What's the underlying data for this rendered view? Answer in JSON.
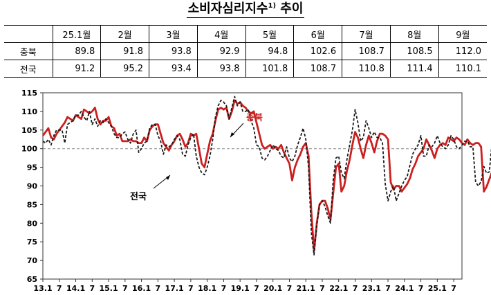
{
  "title": "소비자심리지수",
  "title_footnote": "1)",
  "title_suffix": "추이",
  "table": {
    "columns": [
      "25.1월",
      "2월",
      "3월",
      "4월",
      "5월",
      "6월",
      "7월",
      "8월",
      "9월"
    ],
    "rows": [
      {
        "label": "충북",
        "values": [
          "89.8",
          "91.8",
          "93.8",
          "92.9",
          "94.8",
          "102.6",
          "108.7",
          "108.5",
          "112.0"
        ]
      },
      {
        "label": "전국",
        "values": [
          "91.2",
          "95.2",
          "93.4",
          "93.8",
          "101.8",
          "108.7",
          "110.8",
          "111.4",
          "110.1"
        ]
      }
    ]
  },
  "chart_data": {
    "type": "line",
    "x_ticks": [
      "13.1",
      "7",
      "14.1",
      "7",
      "15.1",
      "7",
      "16.1",
      "7",
      "17.1",
      "7",
      "18.1",
      "7",
      "19.1",
      "7",
      "20.1",
      "7",
      "21.1",
      "7",
      "22.1",
      "7",
      "23.1",
      "7",
      "24.1",
      "7",
      "25.1",
      "7"
    ],
    "x_start": "2013.1",
    "x_end": "2025.9",
    "ylim": [
      65,
      115
    ],
    "y_ticks": [
      "65",
      "70",
      "75",
      "80",
      "85",
      "90",
      "95",
      "100",
      "105",
      "110",
      "115"
    ],
    "reference_line": 100,
    "grid": false,
    "series": [
      {
        "name": "충북",
        "color": "#cc1f1f",
        "style": "solid",
        "values": [
          103.5,
          104.5,
          105.5,
          103.0,
          102.5,
          104.0,
          105.0,
          106.0,
          107.0,
          108.5,
          108.0,
          107.5,
          109.0,
          108.5,
          108.0,
          110.5,
          110.0,
          109.5,
          110.0,
          111.0,
          108.0,
          106.5,
          107.5,
          107.5,
          108.5,
          106.0,
          105.5,
          103.5,
          104.0,
          102.0,
          102.0,
          102.0,
          102.5,
          102.0,
          102.0,
          101.5,
          101.5,
          103.0,
          102.0,
          105.0,
          106.0,
          106.5,
          106.5,
          104.0,
          101.5,
          100.5,
          99.5,
          101.0,
          102.0,
          103.5,
          104.0,
          102.5,
          100.5,
          101.5,
          104.0,
          103.5,
          104.0,
          100.0,
          96.0,
          95.0,
          98.5,
          102.0,
          104.0,
          107.5,
          110.5,
          111.0,
          110.5,
          111.0,
          108.0,
          110.0,
          113.0,
          112.0,
          112.5,
          111.5,
          111.0,
          110.0,
          109.5,
          110.0,
          107.0,
          104.0,
          101.0,
          100.0,
          100.5,
          101.0,
          100.0,
          100.5,
          100.0,
          101.0,
          99.0,
          97.5,
          96.0,
          91.5,
          95.0,
          97.0,
          98.5,
          100.5,
          101.5,
          98.0,
          83.0,
          72.5,
          80.0,
          85.0,
          86.0,
          86.0,
          84.0,
          81.0,
          88.0,
          95.0,
          96.0,
          88.5,
          90.0,
          94.0,
          97.0,
          101.0,
          104.5,
          103.0,
          100.0,
          97.5,
          101.0,
          103.5,
          101.5,
          99.0,
          102.0,
          104.0,
          104.0,
          103.5,
          102.5,
          91.0,
          89.0,
          90.0,
          90.0,
          88.5,
          89.5,
          90.5,
          92.0,
          94.5,
          96.0,
          98.0,
          99.0,
          100.0,
          102.5,
          101.0,
          99.5,
          97.5,
          100.0,
          101.0,
          101.5,
          101.0,
          103.0,
          102.5,
          102.0,
          103.0,
          102.5,
          101.5,
          101.0,
          102.5,
          101.5,
          101.0,
          101.5,
          101.5,
          100.5,
          88.5,
          89.8,
          91.8,
          93.8,
          92.9,
          94.8,
          102.6,
          108.7,
          108.5,
          112.0
        ]
      },
      {
        "name": "전국",
        "color": "#1a1a1a",
        "style": "dashed",
        "values": [
          102.0,
          101.5,
          102.5,
          101.0,
          103.5,
          105.0,
          105.0,
          105.0,
          101.5,
          106.5,
          107.0,
          107.5,
          109.0,
          109.0,
          110.0,
          108.5,
          107.5,
          110.0,
          106.5,
          108.0,
          106.0,
          107.5,
          107.0,
          108.0,
          107.0,
          106.0,
          104.0,
          103.0,
          103.0,
          104.0,
          104.5,
          102.5,
          101.5,
          104.0,
          105.0,
          99.0,
          100.0,
          101.5,
          102.0,
          105.5,
          106.5,
          106.5,
          103.5,
          102.0,
          98.5,
          101.0,
          100.5,
          101.0,
          102.5,
          103.5,
          102.5,
          98.5,
          98.0,
          101.0,
          103.0,
          104.0,
          98.0,
          95.0,
          93.5,
          93.0,
          95.0,
          98.0,
          102.5,
          108.5,
          111.5,
          113.0,
          112.5,
          111.5,
          108.0,
          111.0,
          114.0,
          111.5,
          112.5,
          110.0,
          110.0,
          110.5,
          107.5,
          105.5,
          101.0,
          100.5,
          97.5,
          97.0,
          98.0,
          99.5,
          101.0,
          100.0,
          99.5,
          98.0,
          97.5,
          100.5,
          97.5,
          96.5,
          98.0,
          101.0,
          103.0,
          105.5,
          102.5,
          95.0,
          77.5,
          71.5,
          79.5,
          85.0,
          86.0,
          84.5,
          82.0,
          80.0,
          91.5,
          97.5,
          98.0,
          93.5,
          92.0,
          97.0,
          101.0,
          105.0,
          110.5,
          107.0,
          102.0,
          103.0,
          107.5,
          105.5,
          103.0,
          104.5,
          103.0,
          103.0,
          101.5,
          90.5,
          86.0,
          88.5,
          90.0,
          86.0,
          88.0,
          90.0,
          91.5,
          92.5,
          95.5,
          98.5,
          100.0,
          101.0,
          103.5,
          98.0,
          98.0,
          101.0,
          100.5,
          101.5,
          103.5,
          101.5,
          100.5,
          100.0,
          101.0,
          103.5,
          102.5,
          100.5,
          100.0,
          101.0,
          102.0,
          102.0,
          100.5,
          100.5,
          91.0,
          90.0,
          91.2,
          95.2,
          93.4,
          93.8,
          101.8,
          108.7,
          110.8,
          111.4,
          110.1
        ]
      }
    ],
    "annotations": [
      {
        "text": "충북",
        "series": "충북",
        "color": "#cc1f1f"
      },
      {
        "text": "전국",
        "series": "전국",
        "color": "#000000"
      }
    ]
  }
}
